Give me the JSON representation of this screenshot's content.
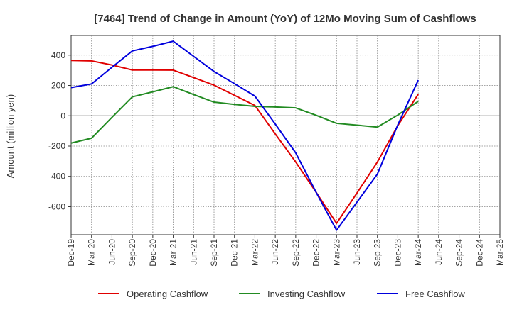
{
  "chart_data": {
    "type": "line",
    "title": "[7464]  Trend of Change in Amount (YoY) of 12Mo Moving Sum of Cashflows",
    "xlabel": "",
    "ylabel": "Amount (million yen)",
    "ylim": [
      -785,
      530
    ],
    "yticks": [
      -600,
      -400,
      -200,
      0,
      200,
      400
    ],
    "categories": [
      "Dec-19",
      "Mar-20",
      "Jun-20",
      "Sep-20",
      "Dec-20",
      "Mar-21",
      "Jun-21",
      "Sep-21",
      "Dec-21",
      "Mar-22",
      "Jun-22",
      "Sep-22",
      "Dec-22",
      "Mar-23",
      "Jun-23",
      "Sep-23",
      "Dec-23",
      "Mar-24",
      "Jun-24",
      "Sep-24",
      "Dec-24",
      "Mar-25"
    ],
    "grid": true,
    "legend_position": "bottom",
    "series": [
      {
        "name": "Operating Cashflow",
        "color": "#e00000",
        "values": [
          365,
          362,
          335,
          302,
          302,
          301,
          252,
          202,
          135,
          68,
          -120,
          -305,
          -505,
          -710,
          -510,
          -305,
          -65,
          142,
          null,
          null,
          null,
          null
        ]
      },
      {
        "name": "Investing Cashflow",
        "color": "#228b22",
        "values": [
          -180,
          -148,
          -10,
          125,
          158,
          192,
          140,
          90,
          75,
          62,
          58,
          52,
          3,
          -50,
          -62,
          -75,
          5,
          95,
          null,
          null,
          null,
          null
        ]
      },
      {
        "name": "Free Cashflow",
        "color": "#0000dd",
        "values": [
          186,
          210,
          320,
          428,
          458,
          492,
          392,
          292,
          212,
          130,
          -55,
          -245,
          -505,
          -755,
          -570,
          -385,
          -60,
          235,
          null,
          null,
          null,
          null
        ]
      }
    ]
  }
}
